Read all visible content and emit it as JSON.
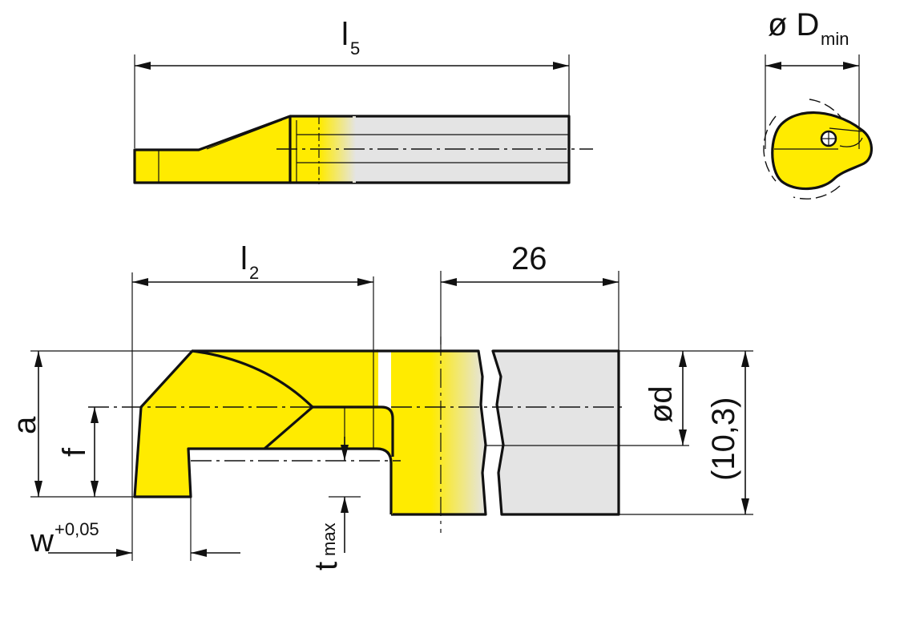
{
  "labels": {
    "l5_main": "l",
    "l5_sub": "5",
    "dmin_main": "ø D",
    "dmin_sub": "min",
    "l2_main": "l",
    "l2_sub": "2",
    "dim_26": "26",
    "a": "a",
    "f": "f",
    "od": "ød",
    "dim_10_3": "(10,3)",
    "w_main": "w",
    "w_sup": "+0,05",
    "t_main": "t",
    "t_sub": "max"
  },
  "colors": {
    "tool_yellow": "#ffeb00",
    "shank_gray": "#e4e4e4",
    "line": "#111111"
  }
}
